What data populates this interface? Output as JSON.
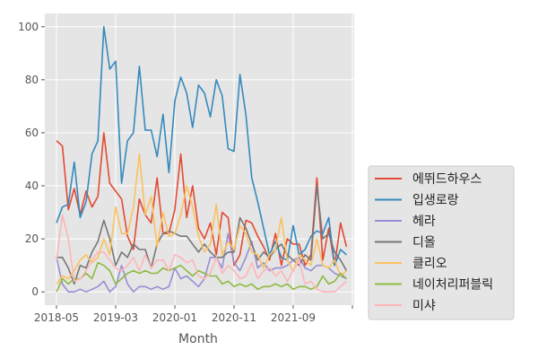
{
  "chart_data": {
    "type": "line",
    "title": "",
    "xlabel": "Month",
    "ylabel": "",
    "x_tick_labels": [
      "2018-05",
      "2019-03",
      "2020-01",
      "2020-11",
      "2021-09",
      ""
    ],
    "y_ticks": [
      0,
      20,
      40,
      60,
      80,
      100
    ],
    "ylim": [
      -5,
      105
    ],
    "grid": true,
    "background": "#e5e5e5",
    "legend_position": "outside-right",
    "x": [
      "2018-05",
      "2018-06",
      "2018-07",
      "2018-08",
      "2018-09",
      "2018-10",
      "2018-11",
      "2018-12",
      "2019-01",
      "2019-02",
      "2019-03",
      "2019-04",
      "2019-05",
      "2019-06",
      "2019-07",
      "2019-08",
      "2019-09",
      "2019-10",
      "2019-11",
      "2019-12",
      "2020-01",
      "2020-02",
      "2020-03",
      "2020-04",
      "2020-05",
      "2020-06",
      "2020-07",
      "2020-08",
      "2020-09",
      "2020-10",
      "2020-11",
      "2020-12",
      "2021-01",
      "2021-02",
      "2021-03",
      "2021-04",
      "2021-05",
      "2021-06",
      "2021-07",
      "2021-08",
      "2021-09",
      "2021-10",
      "2021-11",
      "2021-12",
      "2022-01",
      "2022-02",
      "2022-03",
      "2022-04",
      "2022-05",
      "2022-06"
    ],
    "series": [
      {
        "name": "에뛰드하우스",
        "color": "#e24a33",
        "values": [
          57,
          55,
          31,
          39,
          29,
          38,
          32,
          36,
          60,
          41,
          38,
          35,
          21,
          16,
          35,
          29,
          26,
          43,
          22,
          22,
          31,
          52,
          28,
          40,
          24,
          20,
          26,
          14,
          30,
          28,
          10,
          14,
          27,
          26,
          21,
          17,
          12,
          22,
          10,
          20,
          18,
          18,
          10,
          14,
          43,
          12,
          24,
          10,
          26,
          17
        ]
      },
      {
        "name": "입생로랑",
        "color": "#348abd",
        "values": [
          26,
          32,
          33,
          49,
          28,
          34,
          52,
          57,
          100,
          84,
          87,
          41,
          57,
          60,
          85,
          61,
          61,
          51,
          67,
          45,
          72,
          81,
          75,
          62,
          78,
          75,
          66,
          80,
          74,
          54,
          53,
          82,
          67,
          43,
          34,
          24,
          14,
          19,
          13,
          12,
          25,
          14,
          16,
          21,
          23,
          22,
          28,
          10,
          16,
          14
        ]
      },
      {
        "name": "헤라",
        "color": "#988ed5",
        "values": [
          13,
          3,
          0,
          0,
          1,
          0,
          1,
          2,
          4,
          0,
          2,
          10,
          3,
          0,
          2,
          2,
          1,
          2,
          1,
          2,
          9,
          5,
          6,
          4,
          2,
          5,
          13,
          13,
          9,
          22,
          11,
          8,
          13,
          19,
          9,
          11,
          8,
          9,
          9,
          10,
          12,
          13,
          9,
          8,
          10,
          10,
          9,
          7,
          6,
          5
        ]
      },
      {
        "name": "디올",
        "color": "#777777",
        "values": [
          13,
          13,
          9,
          3,
          10,
          9,
          15,
          19,
          27,
          20,
          10,
          15,
          13,
          18,
          16,
          16,
          9,
          18,
          22,
          23,
          22,
          21,
          21,
          18,
          15,
          18,
          15,
          13,
          13,
          15,
          15,
          28,
          24,
          18,
          12,
          15,
          13,
          16,
          18,
          14,
          12,
          10,
          14,
          12,
          40,
          20,
          22,
          15,
          12,
          8
        ]
      },
      {
        "name": "클리오",
        "color": "#fbc15e",
        "values": [
          3,
          6,
          5,
          8,
          12,
          14,
          11,
          13,
          20,
          14,
          32,
          22,
          22,
          32,
          52,
          29,
          36,
          17,
          30,
          21,
          22,
          29,
          40,
          32,
          21,
          15,
          18,
          33,
          14,
          19,
          16,
          25,
          22,
          15,
          14,
          9,
          14,
          16,
          28,
          12,
          8,
          14,
          12,
          10,
          20,
          10,
          9,
          12,
          6,
          8
        ]
      },
      {
        "name": "네이처리퍼블릭",
        "color": "#8eba42",
        "values": [
          0,
          5,
          3,
          5,
          5,
          7,
          5,
          11,
          10,
          8,
          3,
          5,
          7,
          8,
          7,
          8,
          7,
          7,
          9,
          8,
          9,
          10,
          8,
          6,
          8,
          7,
          6,
          6,
          3,
          4,
          2,
          3,
          2,
          3,
          1,
          2,
          2,
          3,
          2,
          3,
          1,
          2,
          2,
          1,
          2,
          6,
          3,
          4,
          7,
          5
        ]
      },
      {
        "name": "미샤",
        "color": "#ffb5b8",
        "values": [
          12,
          29,
          20,
          4,
          5,
          8,
          12,
          15,
          15,
          12,
          9,
          8,
          10,
          13,
          8,
          14,
          9,
          12,
          12,
          8,
          14,
          13,
          11,
          12,
          6,
          5,
          7,
          13,
          7,
          10,
          8,
          5,
          6,
          11,
          5,
          8,
          9,
          6,
          8,
          4,
          8,
          12,
          3,
          4,
          1,
          0,
          0,
          0,
          2,
          4
        ]
      }
    ]
  }
}
